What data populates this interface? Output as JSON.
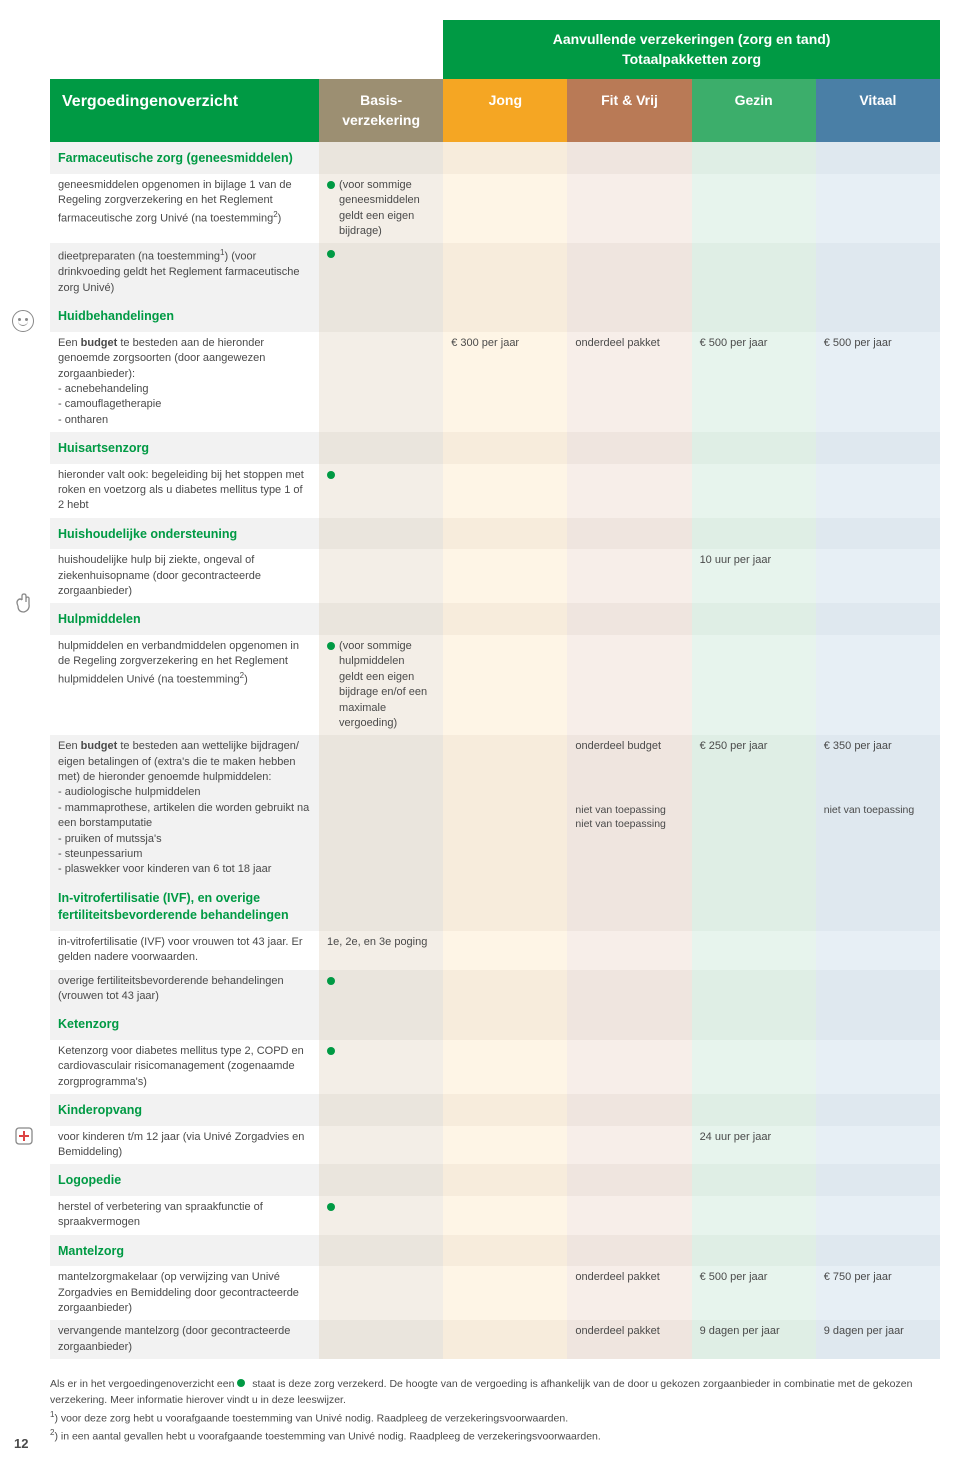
{
  "colors": {
    "brand_green": "#009a44",
    "basis_hdr": "#9c8f72",
    "jong_hdr": "#f5a623",
    "fit_hdr": "#b97a56",
    "gezin_hdr": "#3cae6b",
    "vitaal_hdr": "#4a7fa6"
  },
  "super_header": {
    "line1": "Aanvullende verzekeringen (zorg en tand)",
    "line2": "Totaalpakketten zorg"
  },
  "headers": {
    "desc": "Vergoedingenoverzicht",
    "basis": "Basis-\nverzekering",
    "jong": "Jong",
    "fit": "Fit & Vrij",
    "gezin": "Gezin",
    "vitaal": "Vitaal"
  },
  "sections": [
    {
      "title": "Farmaceutische zorg (geneesmiddelen)",
      "rows": [
        {
          "desc_html": "geneesmiddelen opgenomen in bijlage 1 van de Regeling zorgverzekering en het Reglement farmaceutische zorg Univé (na toestemming<sup>2</sup>)",
          "basis": {
            "dot": true,
            "text": "(voor sommige geneesmiddelen geldt een eigen bijdrage)"
          }
        },
        {
          "alt": true,
          "desc_html": "dieetpreparaten (na toestemming<sup>1</sup>) (voor drinkvoeding geldt het Reglement farmaceutische zorg Univé)",
          "basis": {
            "dot": true
          }
        }
      ]
    },
    {
      "title": "Huidbehandelingen",
      "icon": "face",
      "rows": [
        {
          "desc_html": "Een <b>budget</b> te besteden aan de hieronder genoemde zorgsoorten (door aangewezen zorgaanbieder):<br>- acnebehandeling<br>- camouflagetherapie<br>- ontharen",
          "jong": "€ 300 per jaar",
          "fit": "onderdeel pakket",
          "gezin": "€ 500 per jaar",
          "vitaal": "€ 500 per jaar"
        }
      ]
    },
    {
      "title": "Huisartsenzorg",
      "rows": [
        {
          "desc_html": "hieronder valt ook: begeleiding bij het stoppen met roken en voetzorg als u diabetes mellitus type 1 of 2 hebt",
          "basis": {
            "dot": true
          }
        }
      ]
    },
    {
      "title": "Huishoudelijke ondersteuning",
      "rows": [
        {
          "desc_html": "huishoudelijke hulp bij ziekte, ongeval of ziekenhuisopname (door gecontracteerde zorgaanbieder)",
          "gezin": "10 uur per jaar"
        }
      ]
    },
    {
      "title": "Hulpmiddelen",
      "icon": "hand",
      "rows": [
        {
          "desc_html": "hulpmiddelen en verbandmiddelen opgenomen in de Regeling zorgverzekering en het Reglement hulpmiddelen Univé (na toestemming<sup>2</sup>)",
          "basis": {
            "dot": true,
            "text": "(voor sommige hulpmiddelen geldt een eigen bijdrage en/of een maximale vergoeding)"
          }
        },
        {
          "alt": true,
          "desc_html": "Een <b>budget</b> te besteden aan wettelijke bijdragen/ eigen betalingen of (extra's die te maken hebben met) de hieronder genoemde hulpmiddelen:<br>- audiologische hulpmiddelen<br>- mammaprothese, artikelen die worden gebruikt na een borstamputatie<br>- pruiken of mutssja's<br>- steunpessarium<br>- plaswekker voor kinderen van 6 tot 18 jaar",
          "fit": "onderdeel budget",
          "gezin": "€ 250 per jaar",
          "vitaal": "€ 350 per jaar",
          "sub_fit": "niet van toepassing<br>niet van toepassing",
          "sub_vitaal": "niet van toepassing"
        }
      ]
    },
    {
      "title": "In-vitrofertilisatie (IVF), en overige fertiliteitsbevorderende behandelingen",
      "rows": [
        {
          "desc_html": "in-vitrofertilisatie (IVF) voor vrouwen tot 43 jaar. Er gelden nadere voorwaarden.",
          "basis": {
            "text_only": "1e, 2e, en 3e poging"
          }
        },
        {
          "alt": true,
          "desc_html": "overige fertiliteitsbevorderende behandelingen (vrouwen tot 43 jaar)",
          "basis": {
            "dot": true
          }
        }
      ]
    },
    {
      "title": "Ketenzorg",
      "rows": [
        {
          "desc_html": "Ketenzorg voor diabetes mellitus type 2, COPD en cardiovasculair risicomanagement (zogenaamde zorgprogramma's)",
          "basis": {
            "dot": true
          }
        }
      ]
    },
    {
      "title": "Kinderopvang",
      "rows": [
        {
          "desc_html": "voor kinderen t/m 12 jaar (via Univé Zorgadvies en Bemiddeling)",
          "gezin": "24 uur per jaar"
        }
      ]
    },
    {
      "title": "Logopedie",
      "rows": [
        {
          "desc_html": "herstel of verbetering van spraakfunctie of spraakvermogen",
          "basis": {
            "dot": true
          }
        }
      ]
    },
    {
      "title": "Mantelzorg",
      "icon": "care",
      "rows": [
        {
          "desc_html": "mantelzorgmakelaar (op verwijzing van Univé Zorgadvies en Bemiddeling door gecontracteerde zorgaanbieder)",
          "fit": "onderdeel pakket",
          "gezin": "€ 500 per jaar",
          "vitaal": "€ 750 per jaar"
        },
        {
          "alt": true,
          "desc_html": "vervangende mantelzorg (door gecontracteerde zorgaanbieder)",
          "fit": "onderdeel pakket",
          "gezin": "9 dagen per jaar",
          "vitaal": "9 dagen per jaar"
        }
      ]
    }
  ],
  "footnotes": {
    "main": "Als er in het vergoedingenoverzicht een ● staat is deze zorg verzekerd. De hoogte van de vergoeding is afhankelijk van de door u gekozen zorgaanbieder in combinatie met de gekozen verzekering. Meer informatie hierover vindt u in deze leeswijzer.",
    "n1": "voor deze zorg hebt u voorafgaande toestemming van Univé nodig. Raadpleeg de verzekeringsvoorwaarden.",
    "n2": "in een aantal gevallen hebt u voorafgaande toestemming van Univé nodig. Raadpleeg de verzekeringsvoorwaarden."
  },
  "page_number": "12"
}
